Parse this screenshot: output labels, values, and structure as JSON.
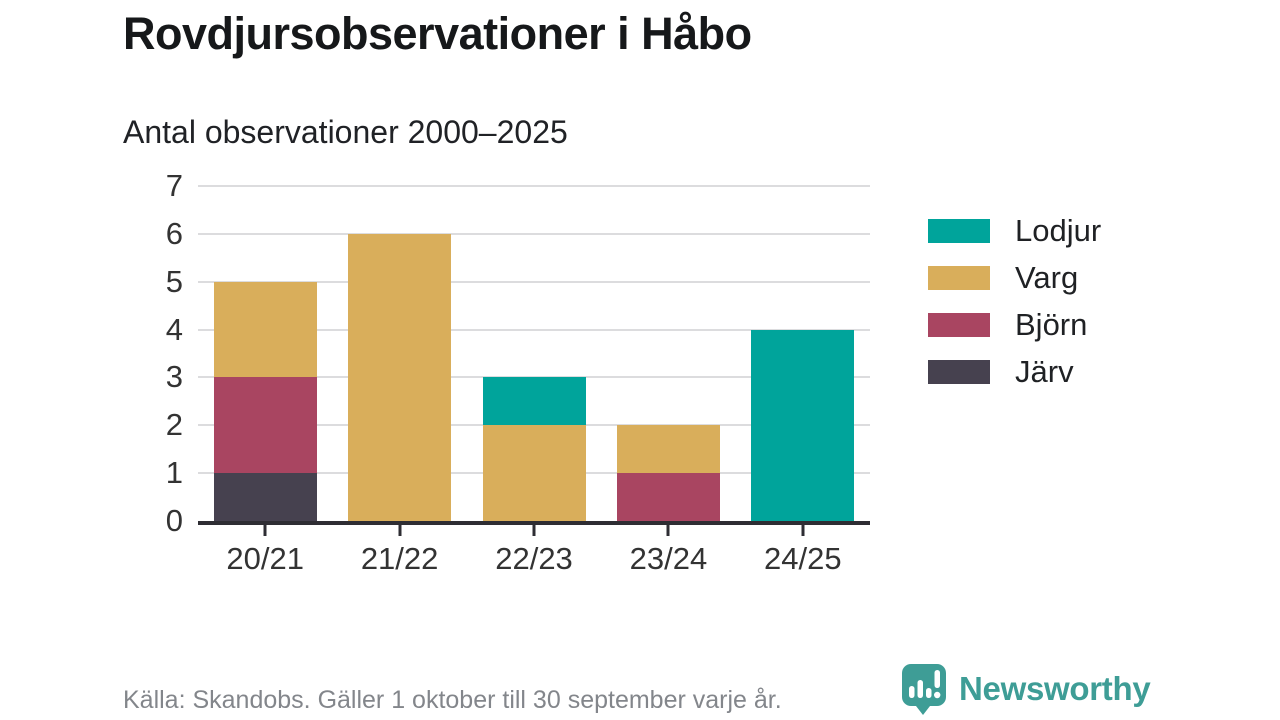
{
  "title": "Rovdjursobservationer i Håbo",
  "subtitle": "Antal observationer 2000–2025",
  "footer": {
    "source": "Källa: Skandobs. Gäller 1 oktober till 30 september varje år."
  },
  "logo": {
    "text": "Newsworthy",
    "color": "#3E9D96"
  },
  "colors": {
    "axis": "#2E2D33",
    "grid": "#DCDCDE",
    "tick_text": "#333333",
    "title_text": "#16181A",
    "source_text": "#83868B"
  },
  "chart_data": {
    "type": "bar",
    "stacked": true,
    "title": "Rovdjursobservationer i Håbo",
    "subtitle": "Antal observationer 2000–2025",
    "categories": [
      "20/21",
      "21/22",
      "22/23",
      "23/24",
      "24/25"
    ],
    "series": [
      {
        "name": "Järv",
        "color": "#46414F",
        "values": [
          1,
          0,
          0,
          0,
          0
        ]
      },
      {
        "name": "Björn",
        "color": "#A94561",
        "values": [
          2,
          0,
          0,
          1,
          0
        ]
      },
      {
        "name": "Varg",
        "color": "#D9AE5B",
        "values": [
          2,
          6,
          2,
          1,
          0
        ]
      },
      {
        "name": "Lodjur",
        "color": "#00A49B",
        "values": [
          0,
          0,
          1,
          0,
          4
        ]
      }
    ],
    "series_order": "bottom-to-top",
    "totals": [
      5,
      6,
      3,
      2,
      4
    ],
    "legend": [
      "Lodjur",
      "Varg",
      "Björn",
      "Järv"
    ],
    "legend_position": "right",
    "ylim": [
      0,
      7
    ],
    "yticks": [
      0,
      1,
      2,
      3,
      4,
      5,
      6,
      7
    ],
    "grid": true,
    "xlabel": "",
    "ylabel": ""
  }
}
